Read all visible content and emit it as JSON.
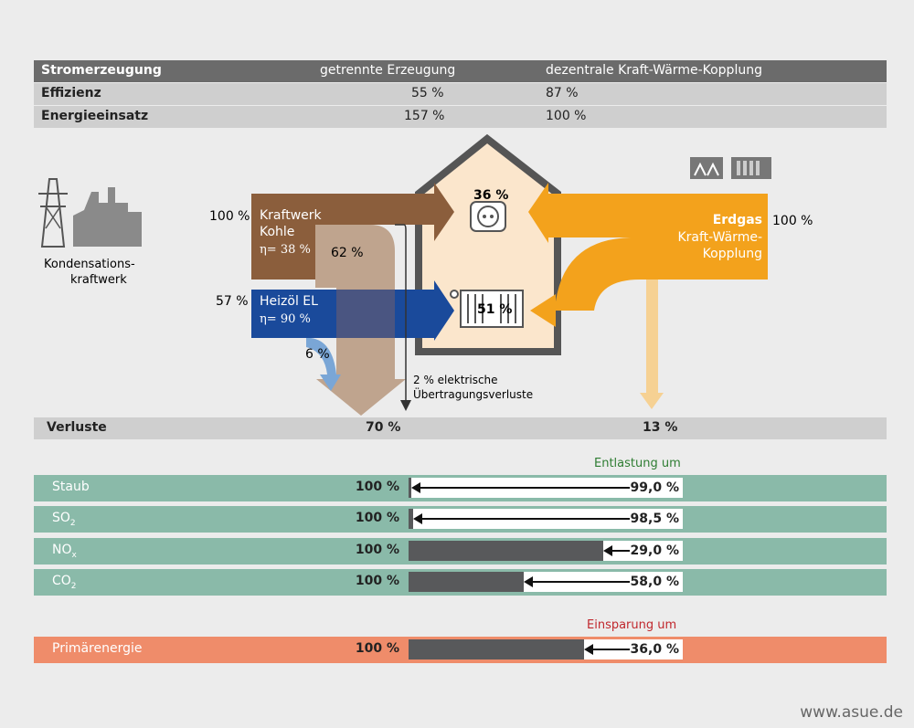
{
  "table": {
    "header": {
      "label": "Stromerzeugung",
      "col1": "getrennte Erzeugung",
      "col2": "dezentrale Kraft-Wärme-Kopplung"
    },
    "rows": [
      {
        "label": "Effizienz",
        "col1": "55 %",
        "col2": "87 %"
      },
      {
        "label": "Energieeinsatz",
        "col1": "157 %",
        "col2": "100 %"
      }
    ]
  },
  "diagram": {
    "plant_label_1": "Kondensations-",
    "plant_label_2": "kraftwerk",
    "coal_pct": "100 %",
    "coal_label_1": "Kraftwerk",
    "coal_label_2": "Kohle",
    "coal_eta": "η= 38 %",
    "coal_loss": "62 %",
    "oil_pct": "57 %",
    "oil_label": "Heizöl EL",
    "oil_eta": "η= 90 %",
    "oil_loss": "6 %",
    "transmission_1": "2 % elektrische",
    "transmission_2": "Übertragungsverluste",
    "house_power": "36 %",
    "house_heat": "51 %",
    "gas_label_1": "Erdgas",
    "gas_label_2": "Kraft-Wärme-",
    "gas_label_3": "Kopplung",
    "gas_pct": "100 %"
  },
  "losses": {
    "label": "Verluste",
    "left": "70 %",
    "right": "13 %"
  },
  "pollutants": {
    "caption": "Entlastung um",
    "items": [
      {
        "label": "Staub",
        "base": "100 %",
        "value": "99,0 %",
        "reduction": 99.0
      },
      {
        "label": "SO",
        "sub": "2",
        "base": "100 %",
        "value": "98,5 %",
        "reduction": 98.5
      },
      {
        "label": "NO",
        "sub": "x",
        "base": "100 %",
        "value": "29,0 %",
        "reduction": 29.0
      },
      {
        "label": "CO",
        "sub": "2",
        "base": "100 %",
        "value": "58,0 %",
        "reduction": 58.0
      }
    ]
  },
  "primary": {
    "caption": "Einsparung um",
    "label": "Primärenergie",
    "base": "100 %",
    "value": "36,0 %",
    "reduction": 36.0
  },
  "footer": {
    "url": "www.asue.de"
  },
  "colors": {
    "brown": "#8b5e3c",
    "blue": "#1a4a9b",
    "orange": "#f3a21c",
    "teal": "#8abaa9",
    "salmon": "#ef8c6a",
    "dark": "#58595b"
  }
}
